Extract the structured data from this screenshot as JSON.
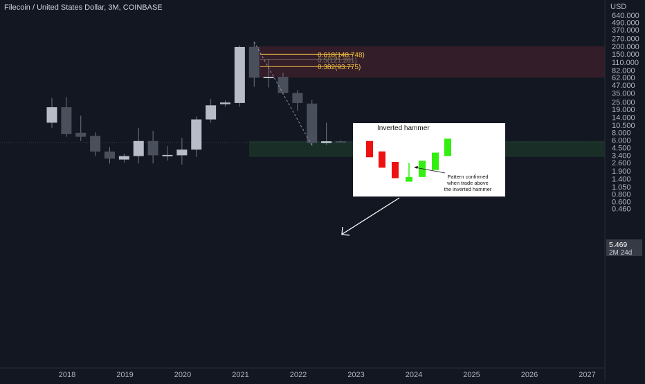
{
  "header": {
    "symbol_title": "Filecoin / United States Dollar, 3M, COINBASE"
  },
  "price_scale": {
    "currency": "USD",
    "ticks": [
      "640.000",
      "490.000",
      "370.000",
      "270.000",
      "200.000",
      "150.000",
      "110.000",
      "82.000",
      "62.000",
      "47.000",
      "35.000",
      "25.000",
      "19.000",
      "14.000",
      "10.500",
      "8.000",
      "6.000",
      "4.500",
      "3.400",
      "2.600",
      "1.900",
      "1.400",
      "1.050",
      "0.800",
      "0.600",
      "0.460"
    ],
    "current_price": "5.469",
    "countdown": "2M 24d"
  },
  "time_scale": {
    "ticks": [
      "2018",
      "2019",
      "2020",
      "2021",
      "2022",
      "2023",
      "2024",
      "2025",
      "2026",
      "2027"
    ]
  },
  "colors": {
    "background": "#131722",
    "candle_body": "#b8bcc8",
    "candle_body_bearish": "#4a4f5c",
    "wick": "#6f7480",
    "resistance_zone": "#3a1f2a",
    "support_zone": "#1a3328",
    "fib_line": "#f5c542",
    "axis_text": "#b2b5be",
    "price_label_bg": "#363a45"
  },
  "fib_levels": [
    {
      "label": "0.618(148.748)",
      "value": 148.748,
      "color": "#f5c542"
    },
    {
      "label": "0.5(121.261)",
      "value": 121.261,
      "color": "#7d7460"
    },
    {
      "label": "0.382(93.775)",
      "value": 93.775,
      "color": "#f5c542"
    }
  ],
  "zones": [
    {
      "name": "resistance",
      "from": 62,
      "to": 200
    },
    {
      "name": "support",
      "from": 3.2,
      "to": 5.8
    }
  ],
  "inset": {
    "title": "Inverted hammer",
    "note_line1": "Pattern confirmed",
    "note_line2": "when trade above",
    "note_line3": "the inverted hammer",
    "candles": [
      {
        "color": "red",
        "open": 0.86,
        "close": 0.58,
        "high": 0.86,
        "low": 0.58
      },
      {
        "color": "red",
        "open": 0.68,
        "close": 0.4,
        "high": 0.68,
        "low": 0.4
      },
      {
        "color": "red",
        "open": 0.5,
        "close": 0.22,
        "high": 0.5,
        "low": 0.22
      },
      {
        "color": "green",
        "open": 0.16,
        "close": 0.24,
        "high": 0.48,
        "low": 0.16
      },
      {
        "color": "green",
        "open": 0.24,
        "close": 0.52,
        "high": 0.52,
        "low": 0.24
      },
      {
        "color": "green",
        "open": 0.36,
        "close": 0.66,
        "high": 0.66,
        "low": 0.36
      },
      {
        "color": "green",
        "open": 0.6,
        "close": 0.9,
        "high": 0.9,
        "low": 0.6
      }
    ]
  },
  "chart_data": {
    "type": "candlestick",
    "title": "Filecoin / United States Dollar, 3M, COINBASE",
    "y_scale": "log",
    "ylim": [
      0.42,
      850
    ],
    "x_ticks": [
      "2018",
      "2019",
      "2020",
      "2021",
      "2022",
      "2023",
      "2024",
      "2025",
      "2026",
      "2027"
    ],
    "candles": [
      {
        "period": "2017-Q4",
        "open": 11.5,
        "high": 29,
        "low": 9.5,
        "close": 20.5
      },
      {
        "period": "2018-Q1",
        "open": 20.5,
        "high": 30,
        "low": 6.8,
        "close": 7.5
      },
      {
        "period": "2018-Q2",
        "open": 7.9,
        "high": 15,
        "low": 5.8,
        "close": 6.8
      },
      {
        "period": "2018-Q3",
        "open": 7.0,
        "high": 8.0,
        "low": 3.3,
        "close": 3.9
      },
      {
        "period": "2018-Q4",
        "open": 3.9,
        "high": 4.6,
        "low": 2.5,
        "close": 3.0
      },
      {
        "period": "2019-Q1",
        "open": 2.9,
        "high": 3.6,
        "low": 2.6,
        "close": 3.3
      },
      {
        "period": "2019-Q2",
        "open": 3.3,
        "high": 9.5,
        "low": 2.5,
        "close": 5.8
      },
      {
        "period": "2019-Q3",
        "open": 5.8,
        "high": 8.5,
        "low": 2.5,
        "close": 3.4
      },
      {
        "period": "2019-Q4",
        "open": 3.35,
        "high": 4.8,
        "low": 2.8,
        "close": 3.45
      },
      {
        "period": "2020-Q1",
        "open": 3.4,
        "high": 6.5,
        "low": 2.4,
        "close": 4.2
      },
      {
        "period": "2020-Q2",
        "open": 4.2,
        "high": 14.5,
        "low": 3.2,
        "close": 13.0
      },
      {
        "period": "2020-Q3",
        "open": 13.0,
        "high": 28,
        "low": 11.5,
        "close": 22.0
      },
      {
        "period": "2020-Q4",
        "open": 23.0,
        "high": 26.5,
        "low": 21.0,
        "close": 24.5
      },
      {
        "period": "2021-Q1",
        "open": 24.0,
        "high": 208,
        "low": 21.0,
        "close": 195
      },
      {
        "period": "2021-Q2",
        "open": 195,
        "high": 237,
        "low": 44,
        "close": 62
      },
      {
        "period": "2021-Q3",
        "open": 62,
        "high": 125,
        "low": 43,
        "close": 64
      },
      {
        "period": "2021-Q4",
        "open": 64,
        "high": 75,
        "low": 33,
        "close": 35
      },
      {
        "period": "2022-Q1",
        "open": 35,
        "high": 39,
        "low": 18,
        "close": 24
      },
      {
        "period": "2022-Q2",
        "open": 23.5,
        "high": 27,
        "low": 4.9,
        "close": 5.35
      },
      {
        "period": "2022-Q3",
        "open": 5.35,
        "high": 11.5,
        "low": 5.0,
        "close": 5.75
      },
      {
        "period": "2022-Q4",
        "open": 5.75,
        "high": 5.95,
        "low": 5.45,
        "close": 5.469
      }
    ]
  }
}
